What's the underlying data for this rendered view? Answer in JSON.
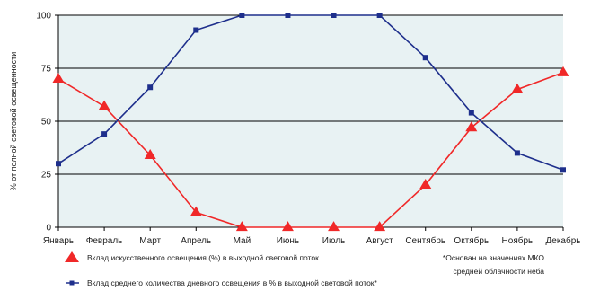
{
  "colors": {
    "artificial": "#f02828",
    "daylight": "#1e2f8c",
    "plot_background": "#e8f2f3",
    "grid": "#000000"
  },
  "chart_data": {
    "type": "line",
    "ylabel": "% от полной световой освещенности",
    "ylim": [
      0,
      100
    ],
    "y_ticks": [
      0,
      25,
      50,
      75,
      100
    ],
    "categories": [
      "Январь",
      "Февраль",
      "Март",
      "Апрель",
      "Май",
      "Июнь",
      "Июль",
      "Август",
      "Сентябрь",
      "Октябрь",
      "Ноябрь",
      "Декабрь"
    ],
    "grid": "horizontal",
    "legend_position": "bottom-left",
    "series": [
      {
        "name": "Вклад искусственного освещения (%) в выходной световой поток",
        "marker": "triangle",
        "color": "#f02828",
        "values": [
          70,
          57,
          34,
          7,
          0,
          0,
          0,
          0,
          20,
          47,
          65,
          73
        ]
      },
      {
        "name": "Вклад среднего количества дневного освещения в % в выходной световой поток*",
        "marker": "square",
        "color": "#1e2f8c",
        "values": [
          30,
          44,
          66,
          93,
          100,
          100,
          100,
          100,
          80,
          54,
          35,
          27
        ]
      }
    ],
    "annotation": [
      "*Основан на значениях МКО",
      "средней облачности неба"
    ]
  }
}
